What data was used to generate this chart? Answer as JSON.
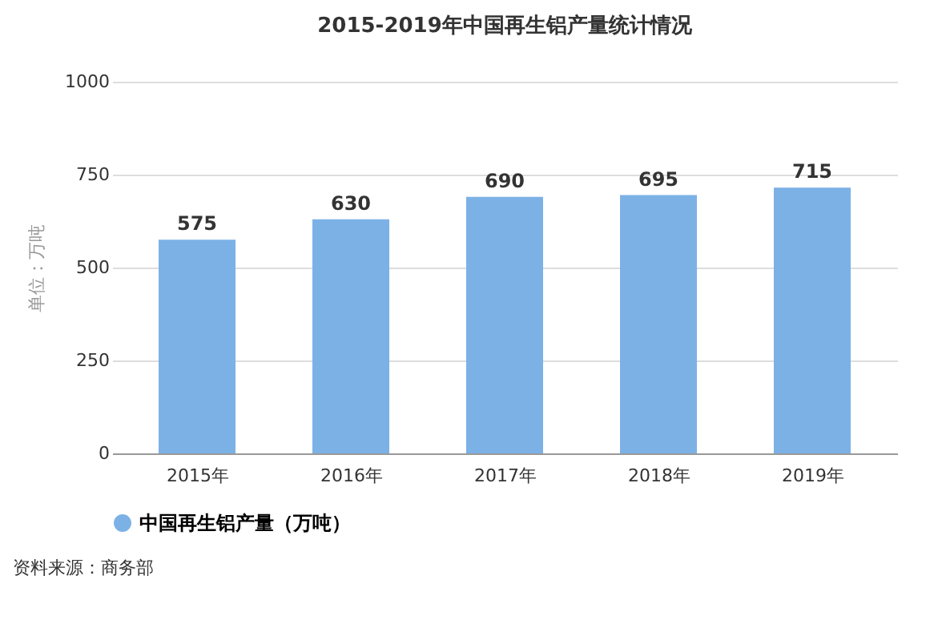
{
  "chart_data": {
    "type": "bar",
    "title": "2015-2019年中国再生铝产量统计情况",
    "ylabel": "单位：万吨",
    "categories": [
      "2015年",
      "2016年",
      "2017年",
      "2018年",
      "2019年"
    ],
    "series": [
      {
        "name": "中国再生铝产量（万吨）",
        "color": "#7cb1e6",
        "values": [
          575,
          630,
          690,
          695,
          715
        ]
      }
    ],
    "ylim": [
      0,
      1000
    ],
    "yticks": [
      0,
      250,
      500,
      750,
      1000
    ],
    "grid": "y",
    "legend": "bottom",
    "data_labels": true,
    "annotations": [
      "资料来源：商务部"
    ]
  }
}
